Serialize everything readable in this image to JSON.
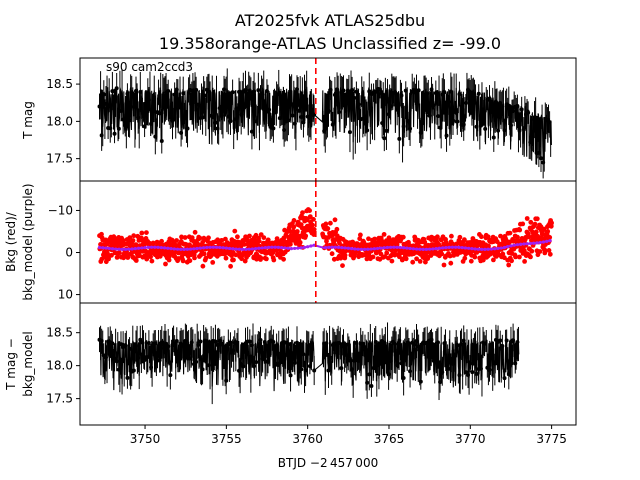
{
  "title_line1": "AT2025fvk  ATLAS25dbu",
  "title_line2": "19.358orange-ATLAS Unclassified z= -99.0",
  "colors": {
    "main": "#000000",
    "bkg": "#ff0000",
    "bkg_model": "#a020f0",
    "marker_line": "#ff0000"
  },
  "chart_data": [
    {
      "type": "scatter",
      "panel": "top",
      "ylabel": "T mag",
      "annotation": "s90 cam2ccd3",
      "y_inverted": true,
      "ylim": [
        18.85,
        17.2
      ],
      "yticks": [
        17.5,
        18.0,
        18.5
      ],
      "ytick_labels": [
        "17.5",
        "18.0",
        "18.5"
      ],
      "vline_x": 3760.5,
      "segments": [
        {
          "x_start": 3747.2,
          "x_end": 3760.4,
          "baseline": 18.35,
          "scatter": 0.3
        },
        {
          "x_start": 3760.9,
          "x_end": 3775.0,
          "baseline": 18.3,
          "scatter": 0.3
        }
      ]
    },
    {
      "type": "scatter",
      "panel": "middle",
      "ylabel_line1": "Bkg (red)/",
      "ylabel_line2": "bkg_model (purple)",
      "ylim": [
        -17,
        12
      ],
      "yticks": [
        10,
        0,
        -10
      ],
      "ytick_labels": [
        "10",
        "0",
        "−10"
      ],
      "series": [
        {
          "name": "Bkg (red)",
          "color": "#ff0000",
          "baseline": -1,
          "spread": 6
        },
        {
          "name": "bkg_model (purple)",
          "color": "#a020f0",
          "level": -1
        }
      ]
    },
    {
      "type": "scatter",
      "panel": "bottom",
      "ylabel_line1": "T mag −",
      "ylabel_line2": "bkg_model",
      "y_inverted": true,
      "ylim": [
        18.95,
        17.1
      ],
      "yticks": [
        17.5,
        18.0,
        18.5
      ],
      "ytick_labels": [
        "17.5",
        "18.0",
        "18.5"
      ],
      "xlabel": "BTJD −2 457 000",
      "xlim": [
        3746,
        3776.5
      ],
      "xticks": [
        3750,
        3755,
        3760,
        3765,
        3770,
        3775
      ],
      "xtick_labels": [
        "3750",
        "3755",
        "3760",
        "3765",
        "3770",
        "3775"
      ]
    }
  ]
}
